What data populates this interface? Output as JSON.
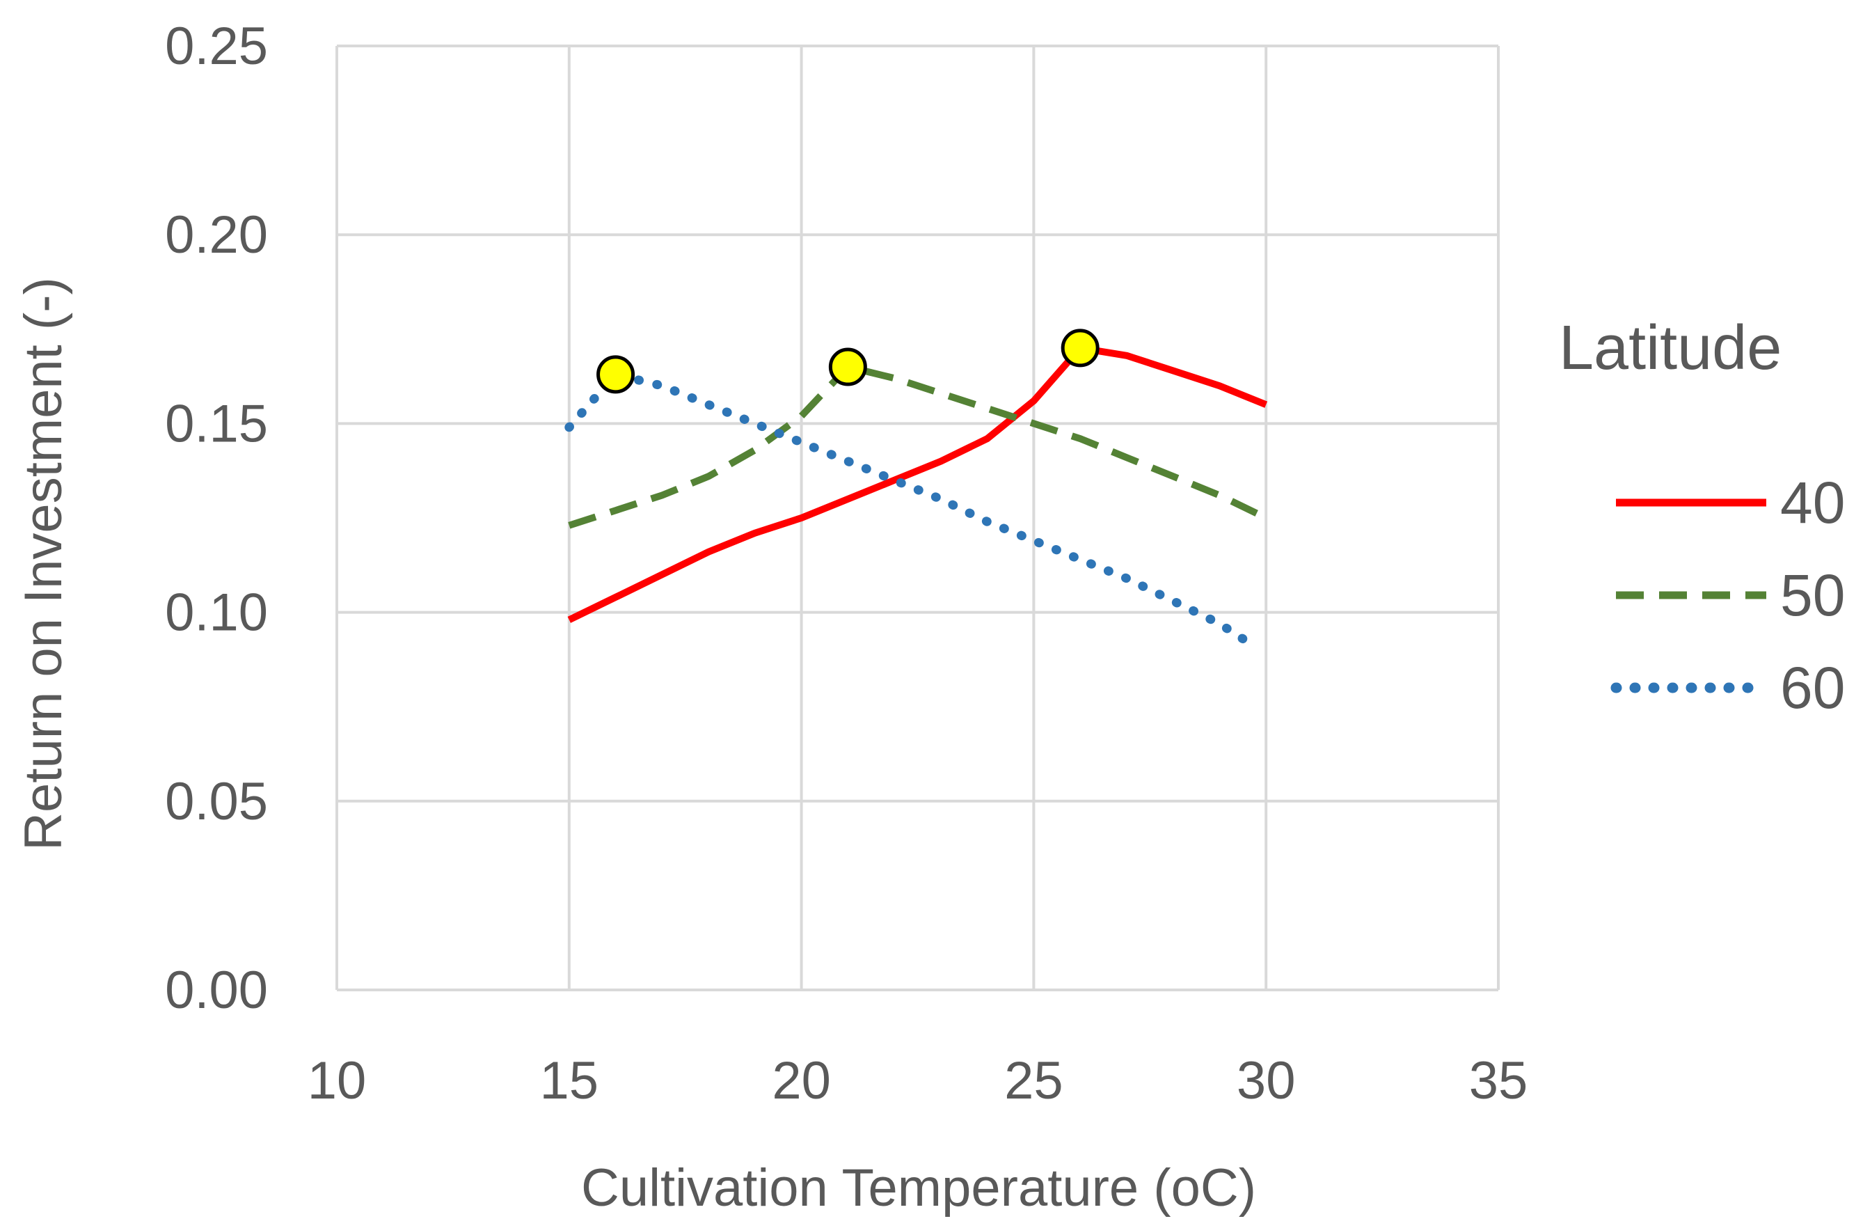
{
  "chart_data": {
    "type": "line",
    "xlabel": "Cultivation Temperature (oC)",
    "ylabel": "Return on Investment (-)",
    "xlim": [
      10,
      35
    ],
    "ylim": [
      0,
      0.25
    ],
    "x_ticks": [
      "10",
      "15",
      "20",
      "25",
      "30",
      "35"
    ],
    "y_ticks": [
      "0.00",
      "0.05",
      "0.10",
      "0.15",
      "0.20",
      "0.25"
    ],
    "grid": true,
    "legend": {
      "title": "Latitude",
      "position": "right"
    },
    "series": [
      {
        "name": "40",
        "style": "solid",
        "color": "#ff0000",
        "x": [
          15,
          16,
          17,
          18,
          19,
          20,
          21,
          22,
          23,
          24,
          25,
          26,
          27,
          28,
          29,
          30
        ],
        "y": [
          0.098,
          0.104,
          0.11,
          0.116,
          0.121,
          0.125,
          0.13,
          0.135,
          0.14,
          0.146,
          0.156,
          0.17,
          0.168,
          0.164,
          0.16,
          0.155
        ]
      },
      {
        "name": "50",
        "style": "dashed",
        "color": "#548235",
        "x": [
          15,
          16,
          17,
          18,
          19,
          20,
          21,
          22,
          23,
          24,
          25,
          26,
          27,
          28,
          29,
          30
        ],
        "y": [
          0.123,
          0.127,
          0.131,
          0.136,
          0.143,
          0.152,
          0.165,
          0.162,
          0.158,
          0.154,
          0.15,
          0.146,
          0.141,
          0.136,
          0.131,
          0.125
        ]
      },
      {
        "name": "60",
        "style": "dotted",
        "color": "#2e75b6",
        "x": [
          15,
          16,
          17,
          18,
          19,
          20,
          21,
          22,
          23,
          24,
          25,
          26,
          27,
          28,
          29,
          29.5
        ],
        "y": [
          0.149,
          0.163,
          0.16,
          0.155,
          0.15,
          0.145,
          0.14,
          0.135,
          0.13,
          0.124,
          0.119,
          0.114,
          0.109,
          0.103,
          0.097,
          0.093
        ]
      }
    ],
    "optimum_markers": [
      {
        "series": "60",
        "x": 16.0,
        "y": 0.163
      },
      {
        "series": "50",
        "x": 21.0,
        "y": 0.165
      },
      {
        "series": "40",
        "x": 26.0,
        "y": 0.17
      }
    ],
    "marker_color": "#ffff00"
  }
}
